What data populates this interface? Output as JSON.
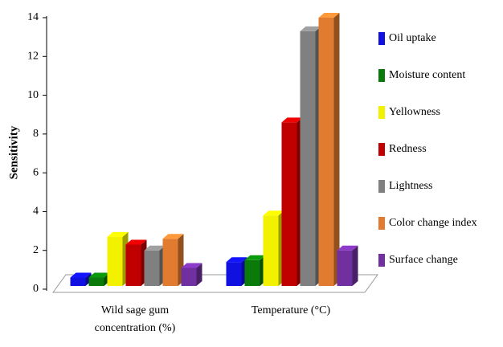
{
  "chart_data": {
    "type": "bar3d",
    "ylabel": "Sensitivity",
    "categories": [
      "Wild sage gum concentration (%)",
      "Temperature (°C)"
    ],
    "series": [
      {
        "name": "Oil uptake",
        "color": "#1010e0",
        "values": [
          0.6,
          1.4
        ]
      },
      {
        "name": "Moisture content",
        "color": "#0a7a0a",
        "values": [
          0.6,
          1.5
        ]
      },
      {
        "name": "Yellowness",
        "color": "#f2f200",
        "values": [
          2.7,
          3.8
        ]
      },
      {
        "name": "Redness",
        "color": "#c00000",
        "values": [
          2.3,
          8.6
        ]
      },
      {
        "name": "Lightness",
        "color": "#808080",
        "values": [
          2.0,
          13.3
        ]
      },
      {
        "name": "Color change index",
        "color": "#e07b30",
        "values": [
          2.6,
          14.0
        ]
      },
      {
        "name": "Surface change",
        "color": "#7030a0",
        "values": [
          1.1,
          2.0
        ]
      }
    ],
    "ylim": [
      0,
      14
    ],
    "yticks": [
      0,
      2,
      4,
      6,
      8,
      10,
      12,
      14
    ]
  }
}
